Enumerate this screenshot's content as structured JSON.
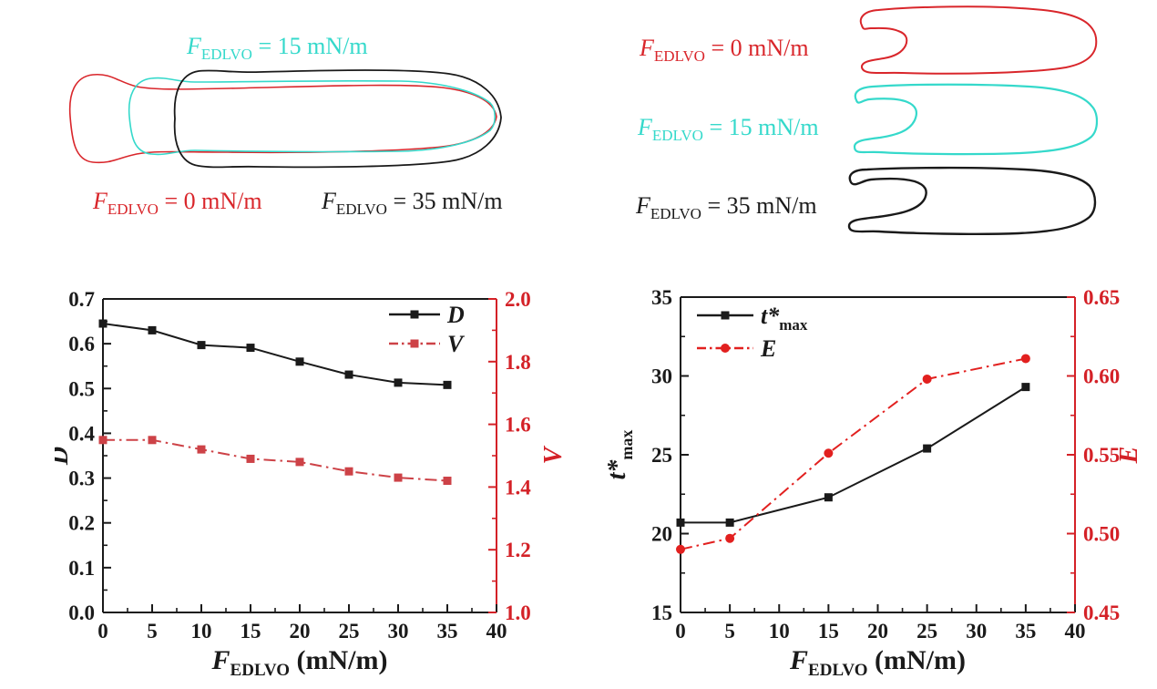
{
  "top_left_panel": {
    "description": "overlaid interface contours",
    "labels": [
      {
        "prefix": "F",
        "sub": "EDLVO",
        "rest": " = 15 mN/m",
        "color": "#35d9cb"
      },
      {
        "prefix": "F",
        "sub": "EDLVO",
        "rest": " = 0 mN/m",
        "color": "#d9262b"
      },
      {
        "prefix": "F",
        "sub": "EDLVO",
        "rest": " = 35 mN/m",
        "color": "#1a1a1a"
      }
    ]
  },
  "top_right_panel": {
    "description": "stacked interface contours",
    "labels": [
      {
        "prefix": "F",
        "sub": "EDLVO",
        "rest": " = 0 mN/m",
        "color": "#d9262b"
      },
      {
        "prefix": "F",
        "sub": "EDLVO",
        "rest": " = 15 mN/m",
        "color": "#35d9cb"
      },
      {
        "prefix": "F",
        "sub": "EDLVO",
        "rest": " = 35 mN/m",
        "color": "#1a1a1a"
      }
    ]
  },
  "contour_colors": {
    "red": "#d9262b",
    "cyan": "#35d9cb",
    "black": "#1a1a1a"
  },
  "chart_data": [
    {
      "type": "line",
      "x": [
        0,
        5,
        10,
        15,
        20,
        25,
        30,
        35
      ],
      "xlim": [
        0,
        40
      ],
      "x_tick_step": 5,
      "x_ticks": [
        "0",
        "5",
        "10",
        "15",
        "20",
        "25",
        "30",
        "35",
        "40"
      ],
      "xlabel": {
        "prefix": "F",
        "sub": "EDLVO",
        "rest": " (mN/m)"
      },
      "grid": false,
      "legend_position": "top-right",
      "left_axis": {
        "label": "D",
        "lim": [
          0.0,
          0.7
        ],
        "tick_step": 0.1,
        "ticks": [
          "0.0",
          "0.1",
          "0.2",
          "0.3",
          "0.4",
          "0.5",
          "0.6",
          "0.7"
        ],
        "color": "#1a1a1a"
      },
      "right_axis": {
        "label": "V",
        "lim": [
          1.0,
          2.0
        ],
        "tick_step": 0.2,
        "ticks": [
          "1.0",
          "1.2",
          "1.4",
          "1.6",
          "1.8",
          "2.0"
        ],
        "color": "#d42127"
      },
      "series": [
        {
          "name": "D",
          "axis": "left",
          "color": "#1a1a1a",
          "marker": "square",
          "linestyle": "solid",
          "values": [
            0.645,
            0.63,
            0.597,
            0.591,
            0.56,
            0.531,
            0.513,
            0.508
          ]
        },
        {
          "name": "V",
          "axis": "right",
          "color": "#cd4247",
          "marker": "square",
          "linestyle": "dashdot",
          "values": [
            1.55,
            1.55,
            1.52,
            1.49,
            1.48,
            1.45,
            1.43,
            1.42
          ]
        }
      ]
    },
    {
      "type": "line",
      "x": [
        0,
        5,
        15,
        25,
        35
      ],
      "xlim": [
        0,
        40
      ],
      "x_tick_step": 5,
      "x_ticks": [
        "0",
        "5",
        "10",
        "15",
        "20",
        "25",
        "30",
        "35",
        "40"
      ],
      "xlabel": {
        "prefix": "F",
        "sub": "EDLVO",
        "rest": " (mN/m)"
      },
      "grid": false,
      "legend_position": "top-left",
      "left_axis": {
        "label": {
          "main": "t*",
          "sub": "max"
        },
        "lim": [
          15,
          35
        ],
        "tick_step": 5,
        "ticks": [
          "15",
          "20",
          "25",
          "30",
          "35"
        ],
        "color": "#1a1a1a"
      },
      "right_axis": {
        "label": "E",
        "lim": [
          0.45,
          0.65
        ],
        "tick_step": 0.05,
        "ticks": [
          "0.45",
          "0.50",
          "0.55",
          "0.60",
          "0.65"
        ],
        "color": "#d42127"
      },
      "series": [
        {
          "name": {
            "main": "t*",
            "sub": "max"
          },
          "axis": "left",
          "color": "#1a1a1a",
          "marker": "square",
          "linestyle": "solid",
          "values": [
            20.7,
            20.7,
            22.3,
            25.4,
            29.3
          ]
        },
        {
          "name": "E",
          "axis": "right",
          "color": "#e2201f",
          "marker": "circle",
          "linestyle": "dashdot",
          "values": [
            0.49,
            0.497,
            0.551,
            0.598,
            0.611
          ]
        }
      ]
    }
  ]
}
